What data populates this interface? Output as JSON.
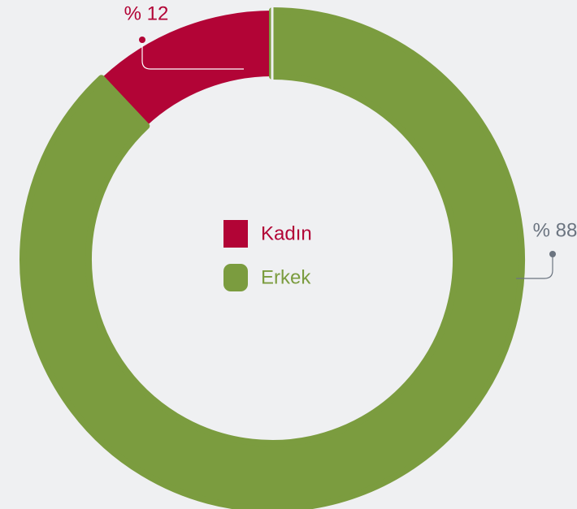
{
  "chart_data": {
    "type": "pie",
    "categories": [
      "Kadın",
      "Erkek"
    ],
    "values": [
      12,
      88
    ],
    "value_labels": [
      "% 12",
      "% 88"
    ],
    "colors": [
      "#b20436",
      "#7b9c3f"
    ]
  }
}
